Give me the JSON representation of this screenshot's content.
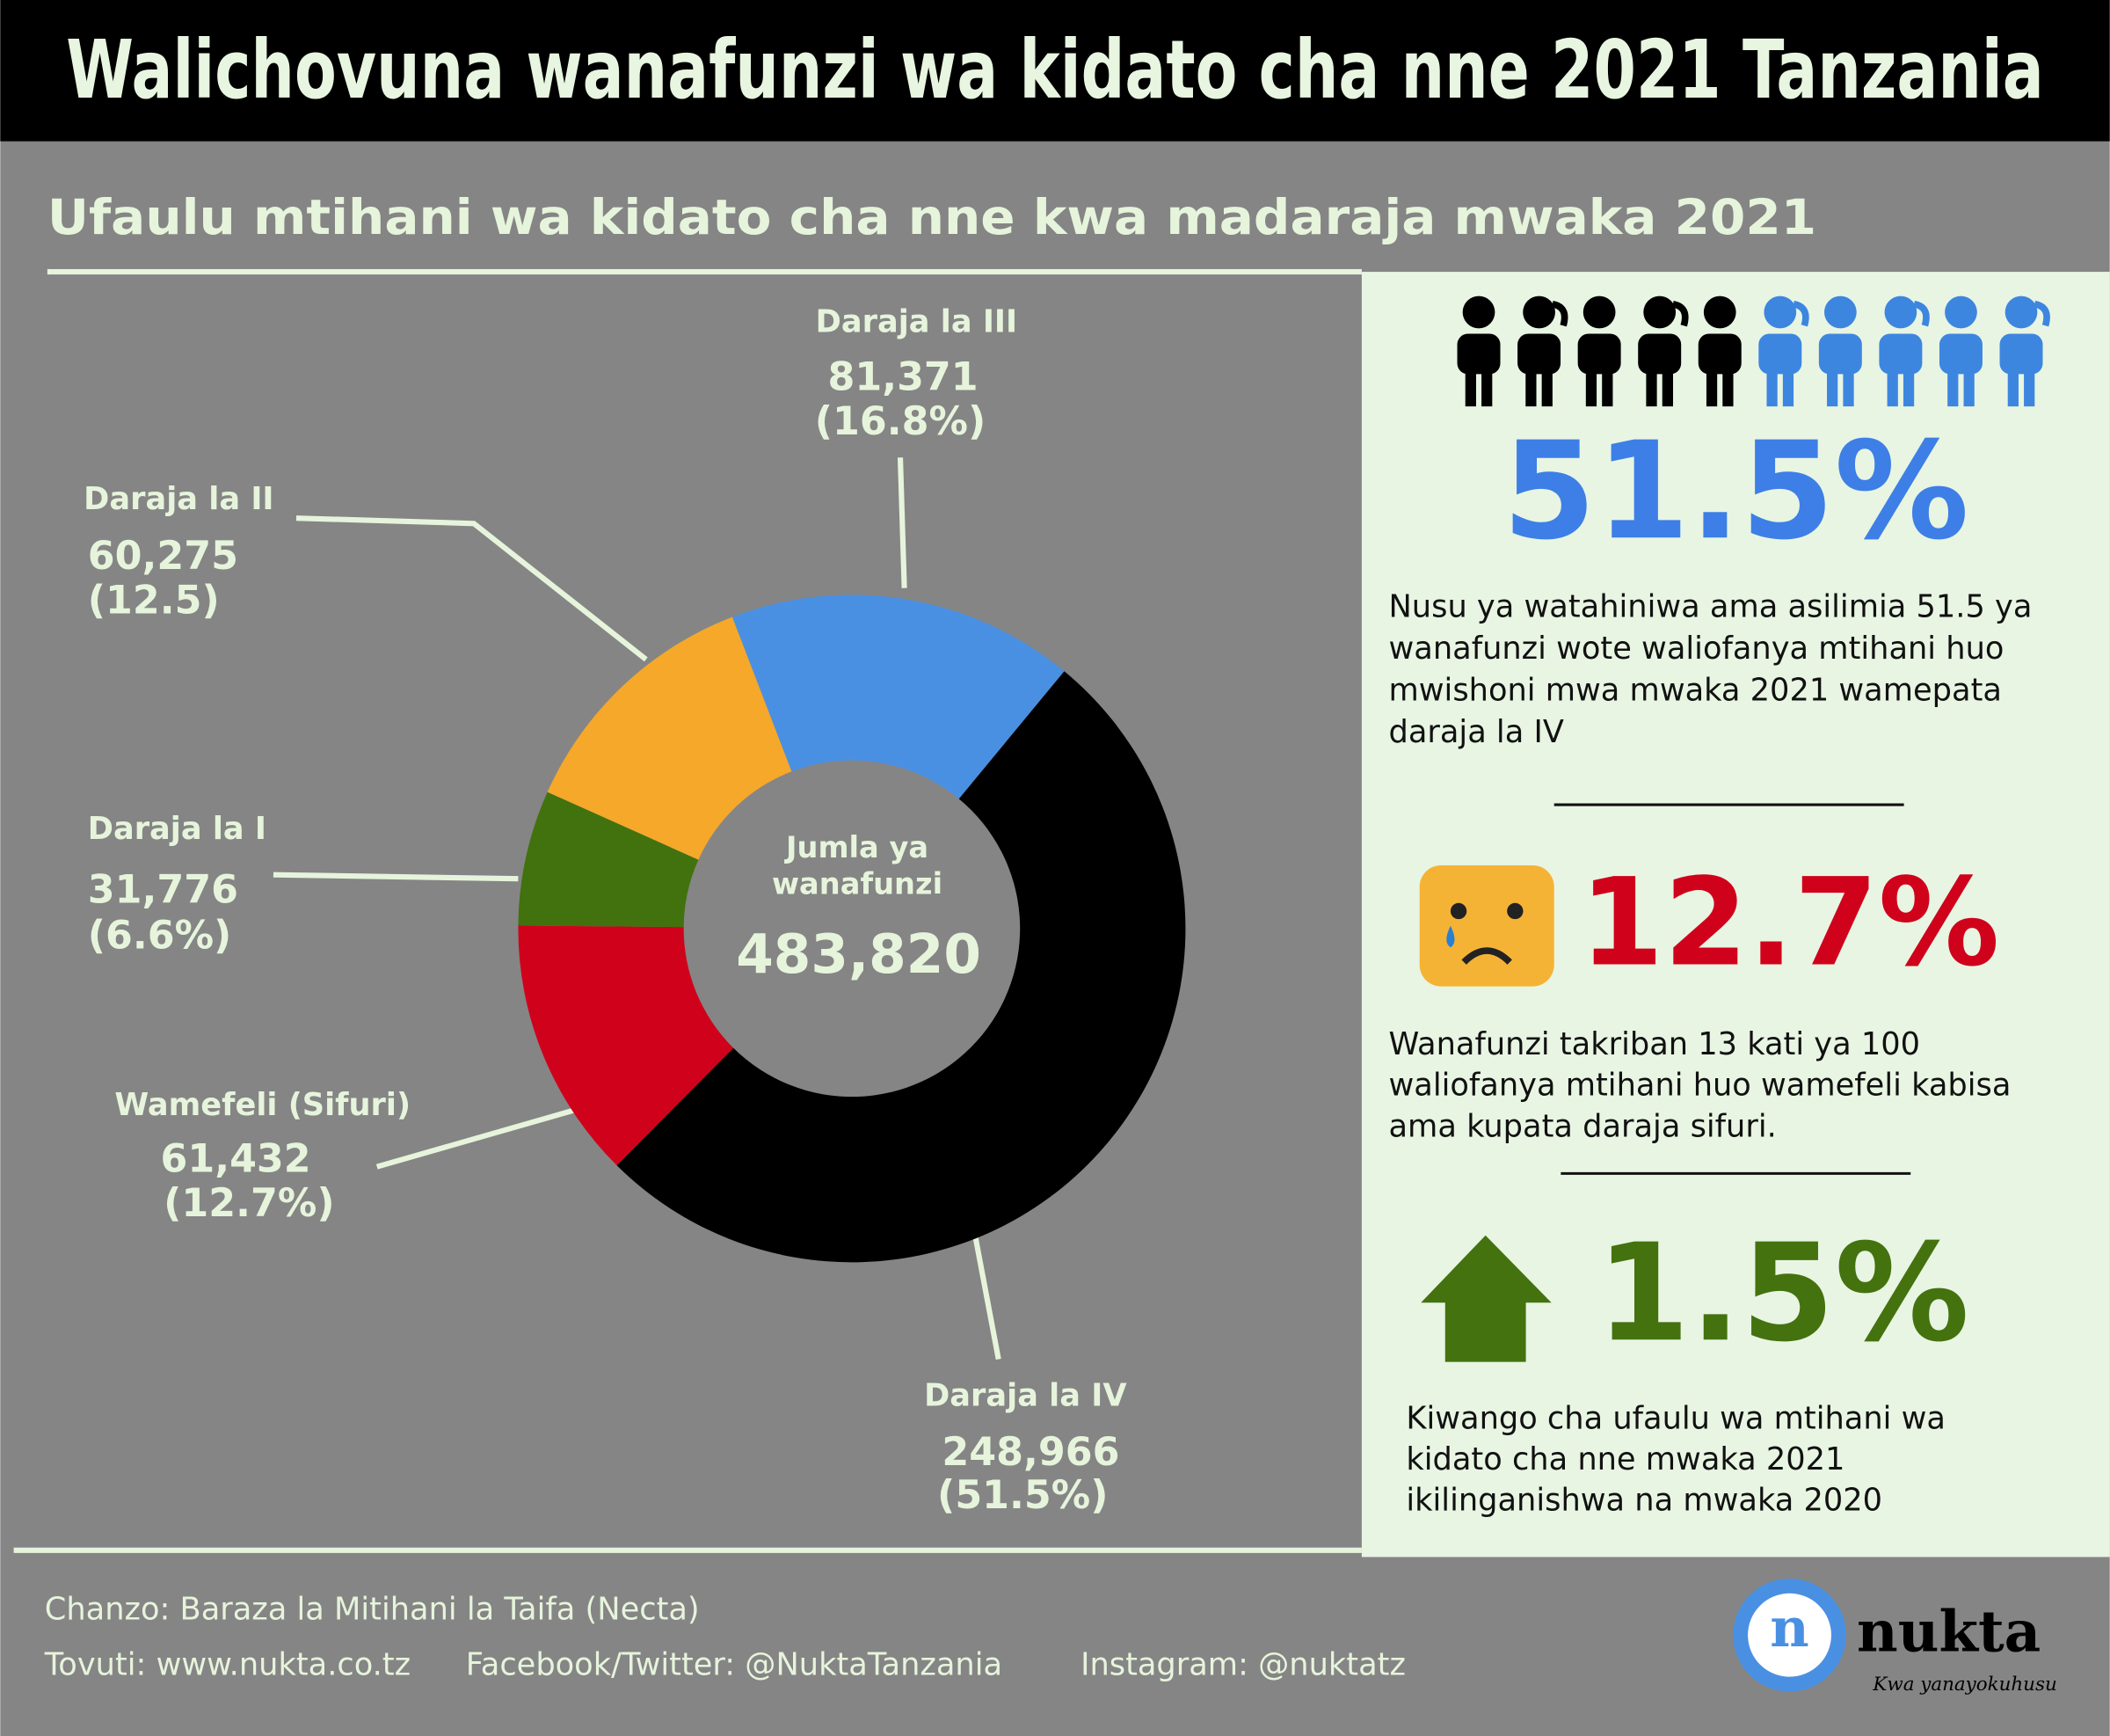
{
  "header": {
    "title": "Walichovuna wanafunzi wa kidato cha nne 2021 Tanzania"
  },
  "chart_data": {
    "type": "donut",
    "title": "Ufaulu mtihani wa kidato cha nne kwa madaraja mwaka 2021",
    "categories": [
      "Daraja la III",
      "Daraja la IV",
      "Wamefeli (Sifuri)",
      "Daraja la I",
      "Daraja la II"
    ],
    "values": [
      81371,
      248966,
      61432,
      31776,
      60275
    ],
    "value_labels": [
      "81,371",
      "248,966",
      "61,432",
      "31,776",
      "60,275"
    ],
    "percents": [
      16.8,
      51.5,
      12.7,
      6.6,
      12.5
    ],
    "percent_labels": [
      "(16.8%)",
      "(51.5%)",
      "(12.7%)",
      "(6.6%)",
      "(12.5)"
    ],
    "colors": [
      "#4a90e2",
      "#000000",
      "#d0021b",
      "#41720e",
      "#f5a82a"
    ],
    "center_label": [
      "Jumla ya",
      "wanafunzi"
    ],
    "total": "483,820"
  },
  "stats": [
    {
      "value": "51.5%",
      "text": [
        "Nusu ya watahiniwa ama asilimia 51.5 ya",
        "wanafunzi wote waliofanya mtihani huo",
        "mwishoni mwa mwaka 2021 wamepata",
        "daraja la IV"
      ]
    },
    {
      "value": "12.7%",
      "text": [
        "Wanafunzi takriban 13 kati ya 100",
        "waliofanya mtihani huo wamefeli kabisa",
        "ama kupata daraja sifuri."
      ]
    },
    {
      "value": "1.5%",
      "text": [
        "Kiwango cha ufaulu wa mtihani wa",
        "kidato cha nne mwaka 2021",
        "ikilinganishwa na mwaka 2020"
      ]
    }
  ],
  "footer": {
    "source": "Chanzo: Baraza la Mitihani la Taifa (Necta)",
    "links": [
      "Tovuti: www.nukta.co.tz",
      "Facebook/Twitter: @NuktaTanzania",
      "Instagram: @nuktatz"
    ]
  },
  "logo": {
    "name": "nukta",
    "tagline": "Kwa yanayokuhusu"
  }
}
